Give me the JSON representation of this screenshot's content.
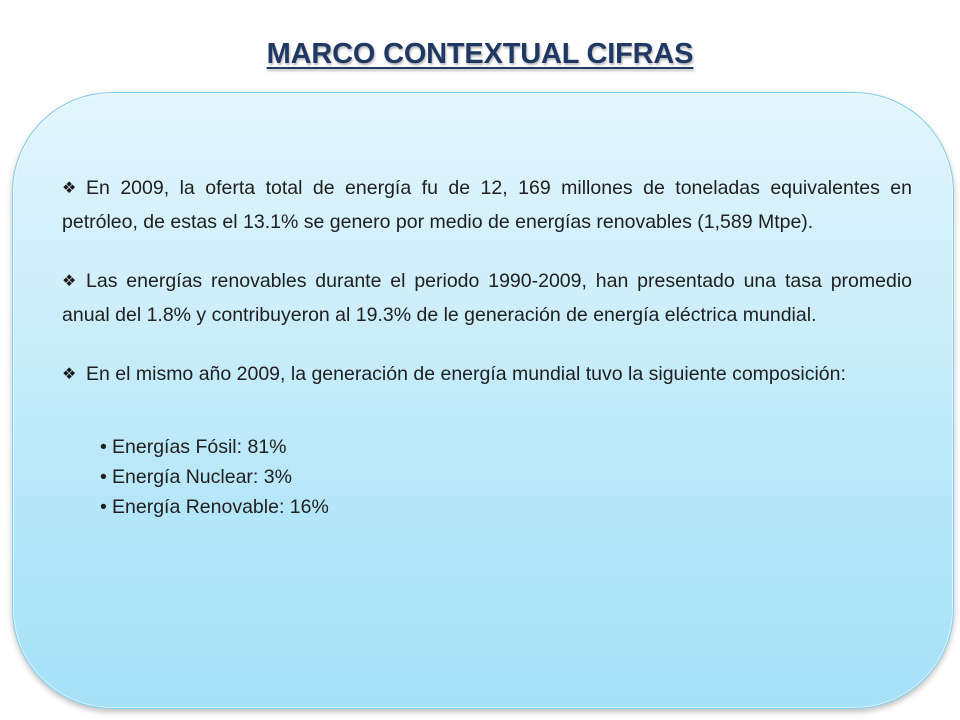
{
  "title": "MARCO CONTEXTUAL CIFRAS",
  "paragraphs": [
    {
      "text": "En 2009, la oferta total de energía fu de 12, 169 millones de toneladas equivalentes en petróleo, de estas el 13.1% se genero por medio de energías renovables (1,589 Mtpe)."
    },
    {
      "text": "Las energías renovables durante el periodo 1990-2009, han presentado una tasa promedio anual del 1.8% y contribuyeron al 19.3% de le generación de energía eléctrica mundial."
    },
    {
      "text": "En el mismo año 2009, la generación de energía mundial tuvo la siguiente composición:"
    }
  ],
  "bullets": [
    "Energías Fósil: 81%",
    "Energía Nuclear: 3%",
    "Energía Renovable: 16%"
  ],
  "icons": {
    "paragraph_marker": "diamond-bullet-icon",
    "list_marker": "dot-bullet-icon"
  }
}
